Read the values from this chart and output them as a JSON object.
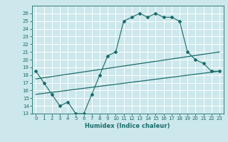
{
  "title": "",
  "xlabel": "Humidex (Indice chaleur)",
  "ylabel": "",
  "x_ticks": [
    0,
    1,
    2,
    3,
    4,
    5,
    6,
    7,
    8,
    9,
    10,
    11,
    12,
    13,
    14,
    15,
    16,
    17,
    18,
    19,
    20,
    21,
    22,
    23
  ],
  "ylim": [
    13,
    27
  ],
  "xlim": [
    -0.5,
    23.5
  ],
  "yticks": [
    13,
    14,
    15,
    16,
    17,
    18,
    19,
    20,
    21,
    22,
    23,
    24,
    25,
    26
  ],
  "bg_color": "#cce8ec",
  "line_color": "#1a6b6b",
  "grid_color": "#ffffff",
  "curve1_x": [
    0,
    1,
    2,
    3,
    4,
    5,
    6,
    7,
    8,
    9,
    10,
    11,
    12,
    13,
    14,
    15,
    16,
    17,
    18,
    19,
    20,
    21,
    22,
    23
  ],
  "curve1_y": [
    18.5,
    17.0,
    15.5,
    14.0,
    14.5,
    13.0,
    13.0,
    15.5,
    18.0,
    20.5,
    21.0,
    25.0,
    25.5,
    26.0,
    25.5,
    26.0,
    25.5,
    25.5,
    25.0,
    21.0,
    20.0,
    19.5,
    18.5,
    18.5
  ],
  "curve2_x": [
    0,
    23
  ],
  "curve2_y": [
    17.5,
    21.0
  ],
  "curve3_x": [
    0,
    23
  ],
  "curve3_y": [
    15.5,
    18.5
  ],
  "marker": "D",
  "markersize": 2.0,
  "linewidth_main": 0.8,
  "linewidth_straight": 0.9,
  "tick_fontsize": 5,
  "xlabel_fontsize": 6
}
